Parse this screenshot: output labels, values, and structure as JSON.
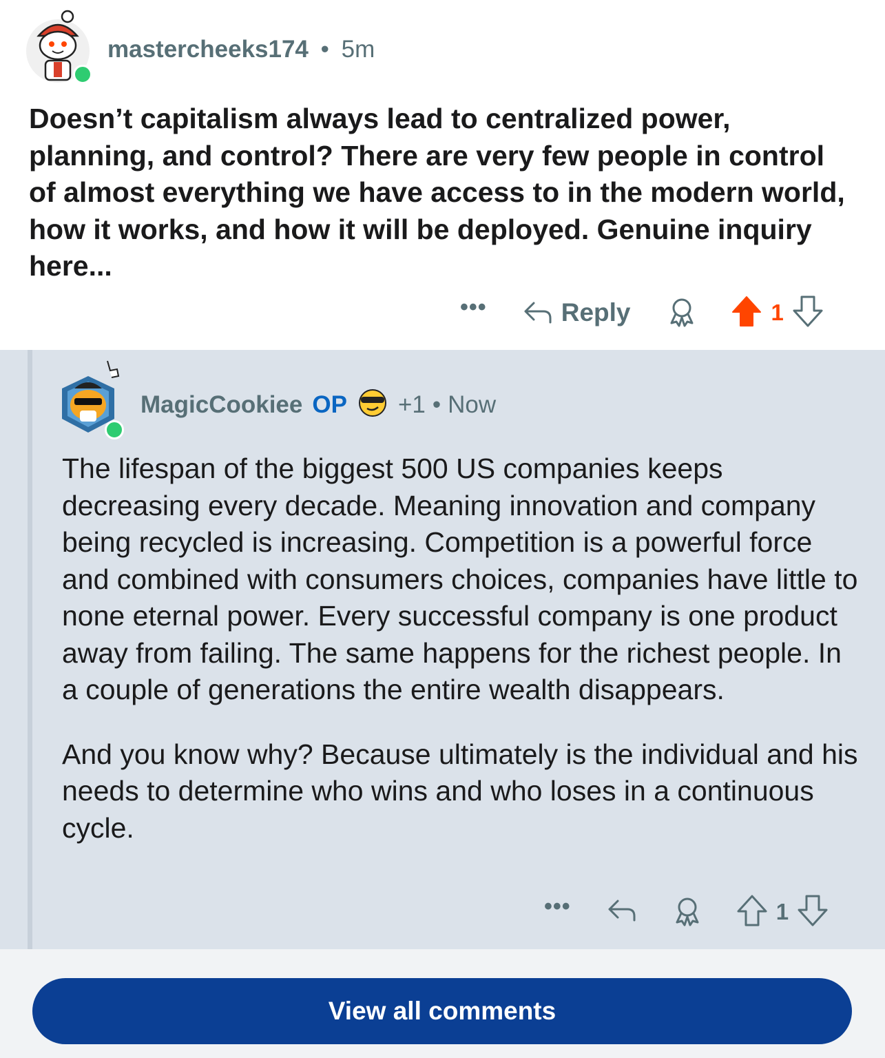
{
  "comment1": {
    "author": "mastercheeks174",
    "separator": "•",
    "time": "5m",
    "body": "Doesn’t capitalism always lead to centralized power, planning, and control? There are very few people in control of almost everything we have access to in the modern world, how it works, and how it will be deployed. Genuine inquiry here...",
    "more": "•••",
    "reply_label": "Reply",
    "vote_count": "1",
    "upvoted": true
  },
  "comment2": {
    "author": "MagicCookiee",
    "op_badge": "OP",
    "karma": "+1",
    "separator": "•",
    "time": "Now",
    "paragraphs": [
      "The lifespan of the biggest 500 US companies keeps decreasing every decade. Meaning innovation and company being recycled is increasing. Competition is a powerful force and combined with consumers choices, companies have little to none eternal power. Every successful company is one product away from failing. The same happens for the richest people. In a couple of generations the entire wealth disappears.",
      "And you know why? Because ultimately is the individual and his needs to determine who wins and who loses in a continuous cycle."
    ],
    "more": "•••",
    "vote_count": "1"
  },
  "footer": {
    "view_all_label": "View all comments"
  },
  "colors": {
    "upvote_active": "#ff4500",
    "meta_gray": "#576f76",
    "op_blue": "#0a66c2",
    "button_blue": "#0b3f94",
    "reply_bg": "#dbe2ea"
  },
  "icons": {
    "avatar1": "snoo-avatar-red-icon",
    "avatar2": "cat-avatar-sunglasses-icon",
    "flair": "cool-sunglasses-emoji-icon",
    "reply": "reply-arrow-icon",
    "award": "award-icon",
    "upvote": "upvote-arrow-icon",
    "downvote": "downvote-arrow-icon"
  }
}
